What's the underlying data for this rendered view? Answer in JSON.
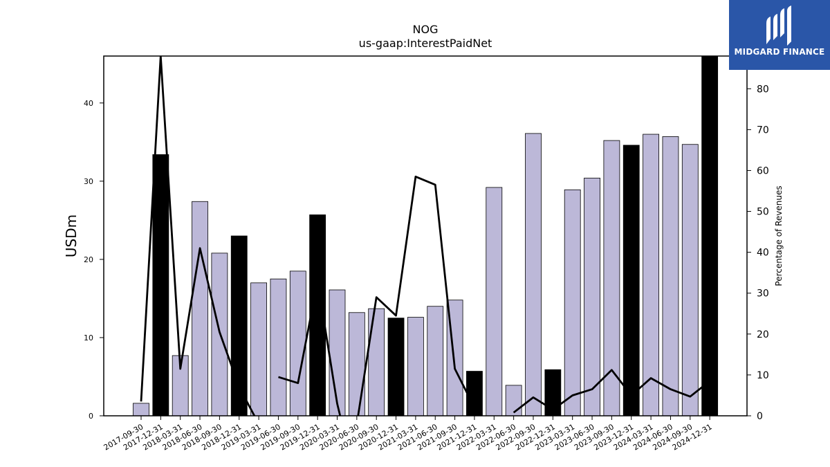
{
  "chart_data": {
    "type": "bar",
    "title": "NOG",
    "subtitle": "us-gaap:InterestPaidNet",
    "ylabel": "USDm",
    "y2label": "Percentage of Revenues",
    "ylim": [
      0,
      46
    ],
    "y2lim": [
      0,
      88
    ],
    "yticks": [
      0,
      10,
      20,
      30,
      40
    ],
    "y2ticks": [
      0,
      10,
      20,
      30,
      40,
      50,
      60,
      70,
      80
    ],
    "categories": [
      "2017-09-30",
      "2017-12-31",
      "2018-03-31",
      "2018-06-30",
      "2018-09-30",
      "2018-12-31",
      "2019-03-31",
      "2019-06-30",
      "2019-09-30",
      "2019-12-31",
      "2020-03-31",
      "2020-06-30",
      "2020-09-30",
      "2020-12-31",
      "2021-03-31",
      "2021-06-30",
      "2021-09-30",
      "2021-12-31",
      "2022-03-31",
      "2022-06-30",
      "2022-09-30",
      "2022-12-31",
      "2023-03-31",
      "2023-06-30",
      "2023-09-30",
      "2023-12-31",
      "2024-03-31",
      "2024-06-30",
      "2024-09-30",
      "2024-12-31"
    ],
    "series": [
      {
        "kind": "bar",
        "values": [
          1.6,
          33.4,
          7.7,
          27.4,
          20.8,
          23.0,
          17.0,
          17.5,
          18.5,
          25.7,
          16.1,
          13.2,
          13.7,
          12.5,
          12.6,
          14.0,
          14.8,
          5.7,
          29.2,
          3.9,
          36.1,
          5.9,
          28.9,
          30.4,
          35.2,
          34.6,
          36.0,
          35.7,
          34.7,
          46.0
        ],
        "annual": [
          false,
          true,
          false,
          false,
          false,
          true,
          false,
          false,
          false,
          true,
          false,
          false,
          false,
          true,
          false,
          false,
          false,
          true,
          false,
          false,
          false,
          true,
          false,
          false,
          false,
          true,
          false,
          false,
          false,
          true
        ]
      },
      {
        "kind": "line",
        "axis": "right",
        "segments": [
          [
            [
              0,
              3.5
            ],
            [
              1,
              88.0
            ],
            [
              2,
              11.5
            ],
            [
              3,
              41.0
            ],
            [
              4,
              20.5
            ],
            [
              5,
              7.0
            ],
            [
              6,
              -2.0
            ]
          ],
          [
            [
              7,
              9.5
            ],
            [
              8,
              8.0
            ],
            [
              9,
              33.0
            ],
            [
              10,
              3.0
            ],
            [
              10.2,
              -1.0
            ]
          ],
          [
            [
              11,
              -2.0
            ],
            [
              12,
              29.0
            ],
            [
              13,
              24.5
            ],
            [
              14,
              58.5
            ],
            [
              15,
              56.5
            ],
            [
              16,
              11.5
            ],
            [
              17,
              2.0
            ]
          ],
          [
            [
              19,
              0.8
            ],
            [
              20,
              4.5
            ],
            [
              21,
              1.5
            ],
            [
              22,
              5.0
            ],
            [
              23,
              6.5
            ],
            [
              24,
              11.2
            ],
            [
              25,
              5.0
            ],
            [
              26,
              9.2
            ],
            [
              27,
              6.5
            ],
            [
              28,
              4.7
            ],
            [
              29,
              8.5
            ]
          ]
        ]
      }
    ],
    "colors": {
      "bar_quarterly": "#bcb8d8",
      "bar_annual": "#000000",
      "line": "#000000",
      "axis": "#000000"
    }
  },
  "brand": {
    "name": "MIDGARD FINANCE",
    "background": "#2a56a8"
  }
}
